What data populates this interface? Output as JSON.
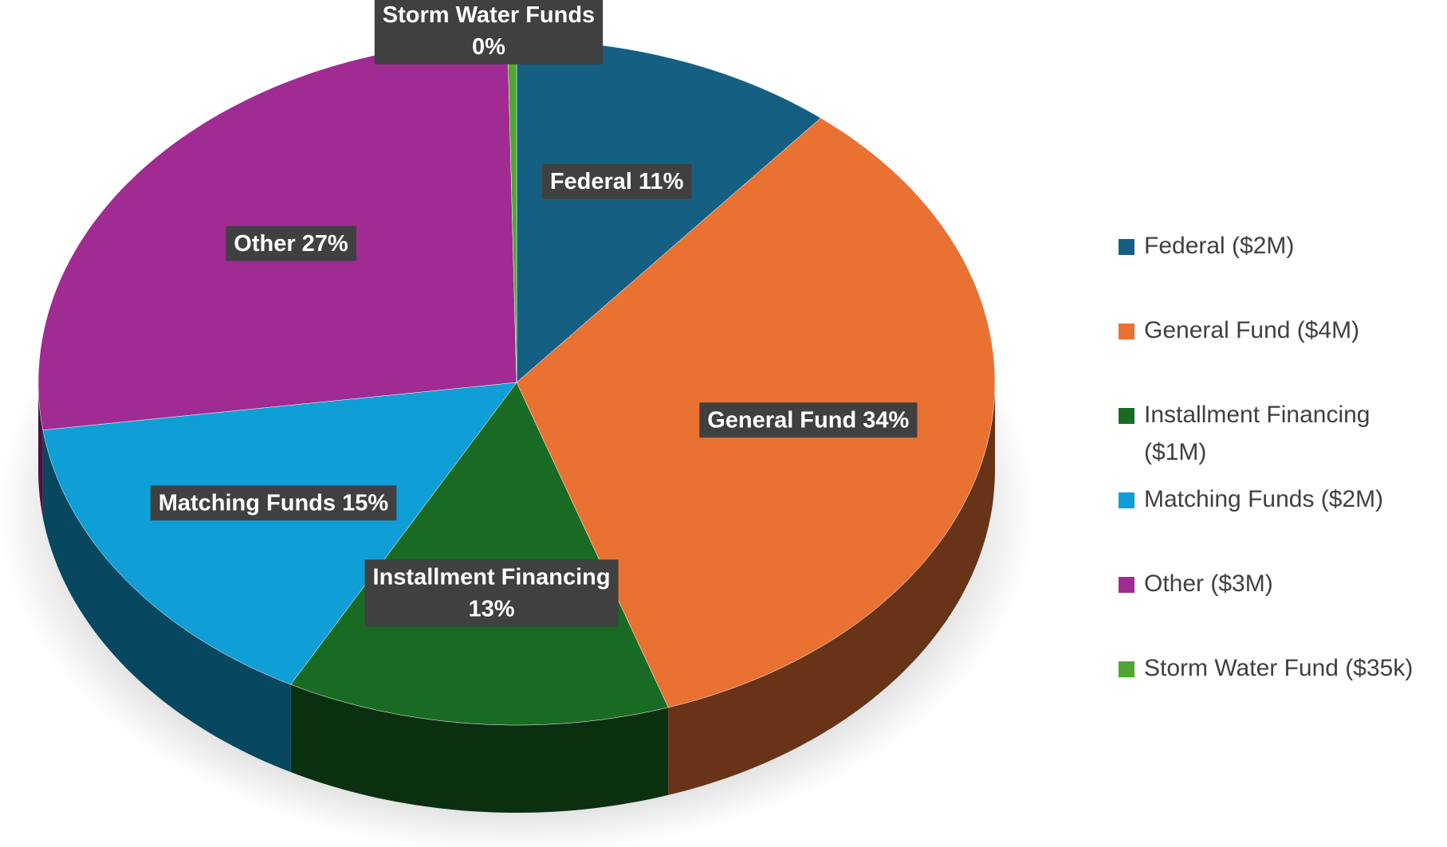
{
  "chart_data": {
    "type": "pie",
    "categories": [
      "Federal ($2M)",
      "General Fund ($4M)",
      "Installment Financing ($1M)",
      "Matching Funds ($2M)",
      "Other ($3M)",
      "Storm Water Fund ($35k)"
    ],
    "values": [
      11,
      34,
      13,
      15,
      27,
      0.3
    ],
    "value_labels": [
      "Federal 11%",
      "General Fund 34%",
      "Installment Financing\n13%",
      "Matching Funds 15%",
      "Other 27%",
      "Storm Water Funds\n0%"
    ],
    "colors": [
      "#156082",
      "#e97132",
      "#196b24",
      "#0f9ed5",
      "#a02b93",
      "#4ea72e"
    ],
    "legend": "right"
  }
}
